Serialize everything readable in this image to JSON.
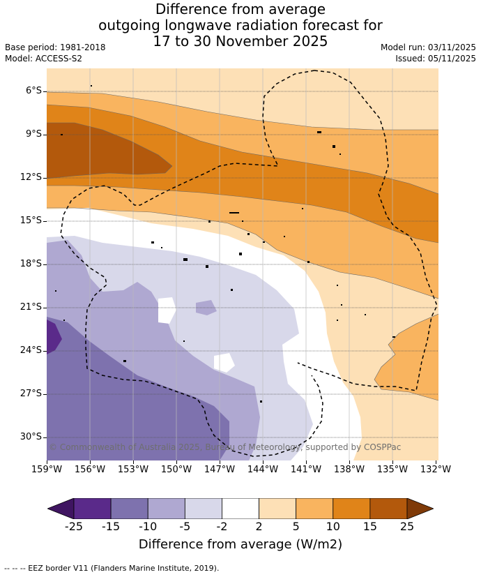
{
  "title": {
    "line1": "Difference from average",
    "line2": "outgoing longwave radiation forecast for",
    "line3": "17 to 30 November 2025"
  },
  "meta": {
    "base_period": "Base period: 1981-2018",
    "model": "Model: ACCESS-S2",
    "model_run": "Model run: 03/11/2025",
    "issued": "Issued: 05/11/2025"
  },
  "map": {
    "lat_labels": [
      "6°S",
      "9°S",
      "12°S",
      "15°S",
      "18°S",
      "21°S",
      "24°S",
      "27°S",
      "30°S"
    ],
    "lon_labels": [
      "159°W",
      "156°W",
      "153°W",
      "150°W",
      "147°W",
      "144°W",
      "141°W",
      "138°W",
      "135°W",
      "132°W"
    ],
    "copyright": "© Commonwealth of Australia 2025, Bureau of Meteorology, supported by COSPPac"
  },
  "colorbar": {
    "ticks": [
      "-25",
      "-15",
      "-10",
      "-5",
      "-2",
      "2",
      "5",
      "10",
      "15",
      "25"
    ],
    "colors": [
      "#3f1561",
      "#5a2a8a",
      "#7e72ae",
      "#afa8d1",
      "#d8d8ea",
      "#ffffff",
      "#fde0b6",
      "#f9b45f",
      "#e08419",
      "#b3590c",
      "#7f3a08"
    ],
    "label": "Difference from average (W/m2)"
  },
  "footnote": "--  --  -- EEZ border V11 (Flanders Marine Institute, 2019)."
}
